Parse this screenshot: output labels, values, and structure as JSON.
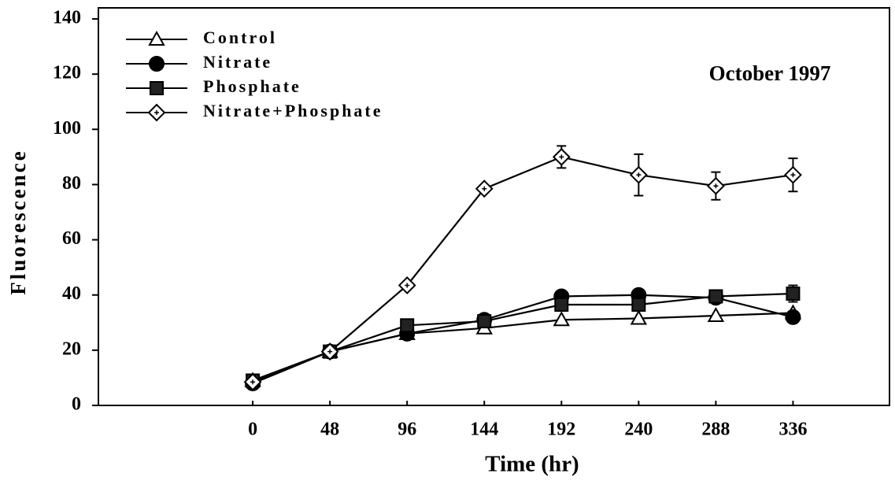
{
  "chart_data": {
    "type": "line",
    "annotation": "October 1997",
    "xlabel": "Time (hr)",
    "ylabel": "Fluorescence",
    "x": [
      0,
      48,
      96,
      144,
      192,
      240,
      288,
      336
    ],
    "xlim": [
      -96,
      396
    ],
    "xticks": [
      0,
      48,
      96,
      144,
      192,
      240,
      288,
      336
    ],
    "ylim": [
      0,
      144
    ],
    "yticks": [
      0,
      20,
      40,
      60,
      80,
      100,
      120,
      140
    ],
    "legend": "upper left",
    "series": [
      {
        "name": "Control",
        "color": "#000000",
        "marker": "triangle",
        "fill": "#ffffff",
        "values": [
          9,
          19.5,
          26,
          28,
          31,
          31.5,
          32.5,
          33.5
        ],
        "errors": [
          null,
          null,
          null,
          null,
          null,
          null,
          null,
          null
        ]
      },
      {
        "name": "Nitrate",
        "color": "#000000",
        "marker": "circle",
        "fill": "#000000",
        "values": [
          8,
          19.5,
          26,
          31,
          39.5,
          40,
          39,
          32
        ],
        "errors": [
          null,
          null,
          null,
          null,
          null,
          null,
          null,
          null
        ]
      },
      {
        "name": "Phosphate",
        "color": "#000000",
        "marker": "square",
        "fill": "#222222",
        "values": [
          9,
          19.5,
          29,
          30.5,
          36.5,
          36.5,
          39.5,
          40.5
        ],
        "errors": [
          null,
          null,
          null,
          null,
          null,
          null,
          null,
          3
        ]
      },
      {
        "name": "Nitrate+Phosphate",
        "color": "#000000",
        "marker": "diamond",
        "fill": "#ffffff",
        "values": [
          8.5,
          19.5,
          43.5,
          78.5,
          90,
          83.5,
          79.5,
          83.5
        ],
        "errors": [
          null,
          null,
          null,
          null,
          4,
          7.5,
          5,
          6
        ]
      }
    ]
  }
}
